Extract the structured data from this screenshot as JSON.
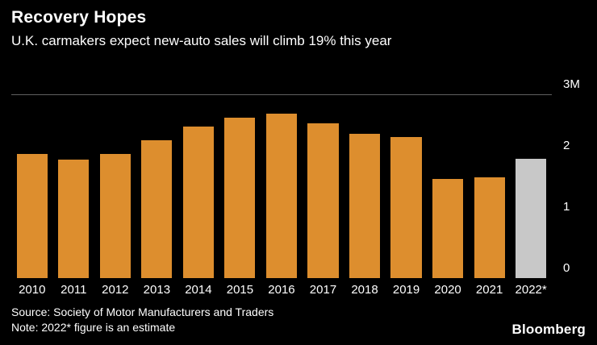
{
  "header": {
    "title": "Recovery Hopes",
    "subtitle": "U.K. carmakers expect new-auto sales will climb 19% this year"
  },
  "chart_data": {
    "type": "bar",
    "title": "Recovery Hopes",
    "subtitle": "U.K. carmakers expect new-auto sales will climb 19% this year",
    "categories": [
      "2010",
      "2011",
      "2012",
      "2013",
      "2014",
      "2015",
      "2016",
      "2017",
      "2018",
      "2019",
      "2020",
      "2021",
      "2022*"
    ],
    "values": [
      2.03,
      1.94,
      2.04,
      2.26,
      2.48,
      2.63,
      2.69,
      2.54,
      2.37,
      2.31,
      1.63,
      1.65,
      1.96
    ],
    "unit": "millions of vehicles",
    "xlabel": "",
    "ylabel": "",
    "ylim": [
      0,
      3
    ],
    "yticks": [
      {
        "label": "3M",
        "value": 3
      },
      {
        "label": "2",
        "value": 2
      },
      {
        "label": "1",
        "value": 1
      },
      {
        "label": "0",
        "value": 0
      }
    ],
    "grid": "single top gridline at 3M",
    "legend_position": "none",
    "bar_color": "#DD8E2E",
    "estimate_bar_color": "#C8C8C8",
    "estimate_index": 12
  },
  "footer": {
    "source": "Source: Society of Motor Manufacturers and Traders",
    "note": "Note: 2022* figure is an estimate",
    "brand": "Bloomberg"
  },
  "colors": {
    "background": "#000000",
    "text": "#ffffff",
    "gridline": "#606060"
  }
}
